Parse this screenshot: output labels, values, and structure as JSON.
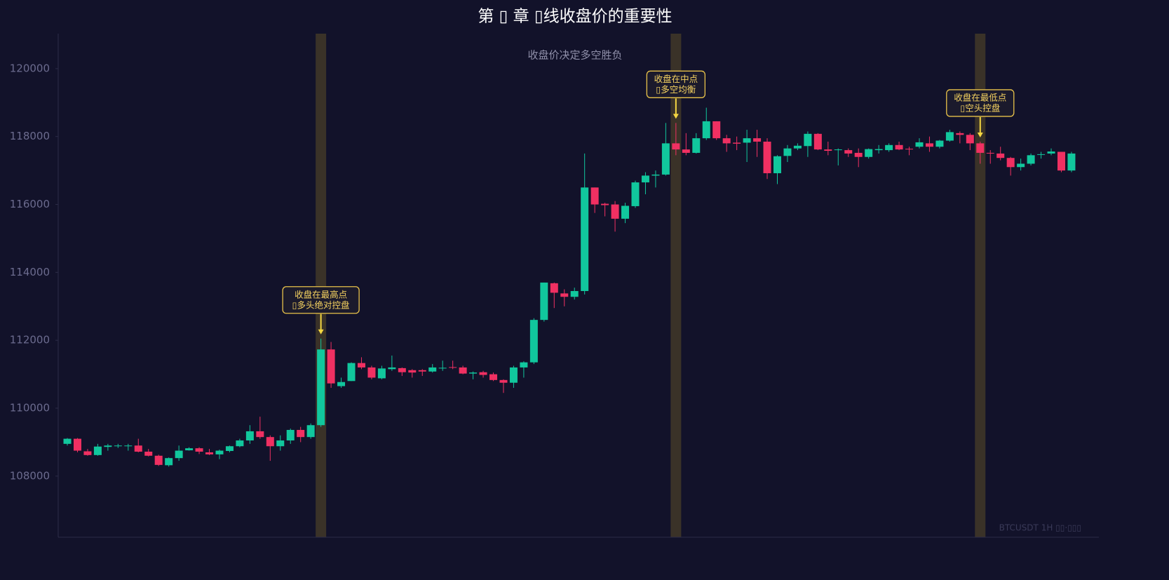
{
  "chart_data": {
    "type": "candlestick",
    "title": "第 ▯ 章 ▯线收盘价的重要性",
    "subtitle": "收盘价决定多空胜负",
    "watermark": "BTCUSDT 1H  ▯▯·▯▯▯",
    "up_color": "#11c79d",
    "down_color": "#f03062",
    "highlight_color": "#3a3228",
    "ylim": [
      106200,
      121030
    ],
    "yticks": [
      108000,
      110000,
      112000,
      114000,
      116000,
      118000,
      120000
    ],
    "xlim": [
      -0.9,
      101.7
    ],
    "highlights": [
      25,
      60,
      90
    ],
    "annotations": [
      {
        "index": 25,
        "lines": [
          "收盘在最高点",
          "▯多头绝对控盘"
        ]
      },
      {
        "index": 60,
        "lines": [
          "收盘在中点",
          "▯多空均衡"
        ]
      },
      {
        "index": 90,
        "lines": [
          "收盘在最低点",
          "▯空头控盘"
        ]
      }
    ],
    "open": [
      108950,
      109100,
      108730,
      108620,
      108860,
      108880,
      108880,
      108900,
      108720,
      108600,
      108320,
      108530,
      108760,
      108820,
      108700,
      108640,
      108740,
      108880,
      109050,
      109320,
      109150,
      108880,
      109050,
      109360,
      109150,
      109500,
      111730,
      110650,
      110800,
      111330,
      111200,
      110880,
      111150,
      111180,
      111120,
      111120,
      111080,
      111180,
      111210,
      111200,
      111020,
      111060,
      111000,
      110830,
      110750,
      111200,
      111350,
      112600,
      113680,
      113380,
      113280,
      113450,
      116500,
      116020,
      116000,
      115580,
      115950,
      116650,
      116850,
      116880,
      117800,
      117620,
      117520,
      117950,
      118450,
      117950,
      117820,
      117820,
      117950,
      117850,
      116920,
      117430,
      117650,
      117720,
      118080,
      117620,
      117600,
      117600,
      117520,
      117400,
      117600,
      117600,
      117750,
      117640,
      117700,
      117800,
      117700,
      117880,
      118100,
      118050,
      117800,
      117520,
      117500,
      117370,
      117100,
      117200,
      117460,
      117500,
      117550,
      117000
    ],
    "high": [
      109120,
      109120,
      108800,
      108950,
      108950,
      108950,
      108950,
      109100,
      108800,
      108630,
      108550,
      108900,
      108850,
      108850,
      108800,
      108780,
      108900,
      109100,
      109500,
      109750,
      109200,
      109200,
      109400,
      109450,
      109550,
      112050,
      111950,
      110900,
      111350,
      111500,
      111250,
      111250,
      111550,
      111200,
      111150,
      111150,
      111300,
      111400,
      111400,
      111250,
      111080,
      111100,
      111050,
      110850,
      111250,
      111380,
      112650,
      113700,
      113700,
      113500,
      113550,
      117500,
      116500,
      116050,
      116100,
      116050,
      116700,
      116950,
      117000,
      118400,
      118400,
      118100,
      118100,
      118850,
      118450,
      118050,
      118000,
      118200,
      118200,
      117950,
      117450,
      117750,
      117800,
      118150,
      118100,
      117850,
      117650,
      117650,
      117650,
      117650,
      117750,
      117800,
      117850,
      117700,
      117950,
      118000,
      117900,
      118200,
      118150,
      118100,
      117850,
      117600,
      117700,
      117400,
      117350,
      117500,
      117550,
      117650,
      117550,
      117550
    ],
    "low": [
      108900,
      108700,
      108600,
      108600,
      108750,
      108830,
      108750,
      108700,
      108580,
      108300,
      108280,
      108450,
      108750,
      108650,
      108620,
      108500,
      108700,
      108850,
      108950,
      109100,
      108450,
      108750,
      108950,
      109000,
      109100,
      109450,
      110600,
      110600,
      110800,
      111150,
      110850,
      110850,
      111100,
      110950,
      110900,
      110950,
      111050,
      111100,
      111150,
      111000,
      110850,
      110900,
      110800,
      110450,
      110600,
      110900,
      111300,
      112550,
      112950,
      113000,
      113200,
      113350,
      115750,
      115650,
      115200,
      115450,
      115900,
      116300,
      116500,
      116850,
      117450,
      117450,
      117500,
      117900,
      117900,
      117550,
      117600,
      117250,
      117400,
      116750,
      116600,
      117250,
      117600,
      117400,
      117600,
      117450,
      117150,
      117400,
      117100,
      117350,
      117500,
      117550,
      117600,
      117450,
      117650,
      117550,
      117650,
      117850,
      117800,
      117600,
      117200,
      117200,
      117300,
      116850,
      117000,
      117150,
      117350,
      117450,
      116950,
      116950
    ],
    "close": [
      109100,
      108750,
      108620,
      108870,
      108900,
      108900,
      108900,
      108720,
      108600,
      108330,
      108530,
      108750,
      108820,
      108720,
      108640,
      108750,
      108880,
      109050,
      109320,
      109150,
      108880,
      109050,
      109360,
      109150,
      109500,
      111730,
      110730,
      110770,
      111330,
      111200,
      110900,
      111170,
      111200,
      111060,
      111050,
      111080,
      111200,
      111190,
      111190,
      111020,
      111050,
      110980,
      110830,
      110750,
      111200,
      111350,
      112600,
      113700,
      113400,
      113280,
      113450,
      116500,
      116000,
      115980,
      115580,
      115960,
      116650,
      116850,
      116880,
      117800,
      117620,
      117520,
      117950,
      118450,
      117950,
      117800,
      117790,
      117950,
      117850,
      116920,
      117420,
      117650,
      117730,
      118080,
      117620,
      117580,
      117620,
      117500,
      117400,
      117630,
      117630,
      117750,
      117620,
      117620,
      117830,
      117700,
      117880,
      118130,
      118050,
      117800,
      117520,
      117500,
      117370,
      117100,
      117200,
      117450,
      117480,
      117560,
      117000,
      117500
    ]
  }
}
